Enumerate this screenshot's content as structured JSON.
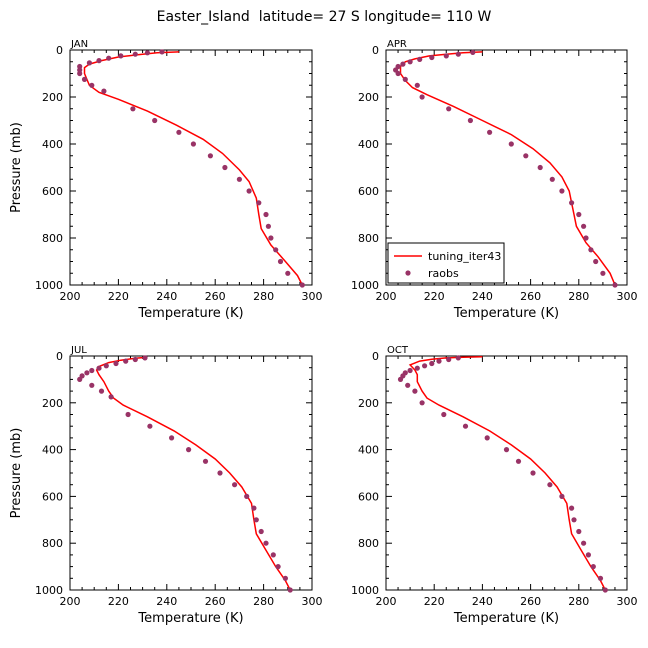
{
  "title": "Easter_Island  latitude= 27 S longitude= 110 W",
  "colors": {
    "model": "#ff0000",
    "obs": "#993366",
    "axis": "#000000"
  },
  "chart_data": [
    {
      "type": "line",
      "panel": "JAN",
      "xlabel": "Temperature (K)",
      "ylabel": "Pressure (mb)",
      "xlim": [
        200,
        300
      ],
      "ylim": [
        1000,
        0
      ],
      "x_ticks": [
        "200",
        "220",
        "240",
        "260",
        "280",
        "300"
      ],
      "y_ticks": [
        "0",
        "200",
        "400",
        "600",
        "800",
        "1000"
      ],
      "series": [
        {
          "name": "tuning_iter43",
          "style": "line",
          "points": [
            [
              245,
              8
            ],
            [
              236,
              12
            ],
            [
              228,
              20
            ],
            [
              220,
              30
            ],
            [
              213,
              45
            ],
            [
              208,
              60
            ],
            [
              206,
              75
            ],
            [
              206,
              100
            ],
            [
              207,
              125
            ],
            [
              208,
              150
            ],
            [
              212,
              180
            ],
            [
              220,
              210
            ],
            [
              232,
              260
            ],
            [
              244,
              320
            ],
            [
              255,
              380
            ],
            [
              263,
              440
            ],
            [
              270,
              510
            ],
            [
              274,
              560
            ],
            [
              277,
              630
            ],
            [
              278,
              700
            ],
            [
              279,
              760
            ],
            [
              283,
              830
            ],
            [
              289,
              900
            ],
            [
              294,
              960
            ],
            [
              296,
              1000
            ]
          ]
        },
        {
          "name": "raobs",
          "style": "markers",
          "points": [
            [
              204,
              70
            ],
            [
              204,
              85
            ],
            [
              204,
              100
            ],
            [
              206,
              125
            ],
            [
              209,
              150
            ],
            [
              214,
              175
            ],
            [
              226,
              250
            ],
            [
              235,
              300
            ],
            [
              245,
              350
            ],
            [
              251,
              400
            ],
            [
              258,
              450
            ],
            [
              264,
              500
            ],
            [
              270,
              550
            ],
            [
              274,
              600
            ],
            [
              278,
              650
            ],
            [
              281,
              700
            ],
            [
              282,
              750
            ],
            [
              283,
              800
            ],
            [
              285,
              850
            ],
            [
              287,
              900
            ],
            [
              290,
              950
            ],
            [
              296,
              1000
            ],
            [
              208,
              55
            ],
            [
              212,
              45
            ],
            [
              216,
              35
            ],
            [
              221,
              25
            ],
            [
              227,
              18
            ],
            [
              232,
              12
            ],
            [
              238,
              8
            ]
          ]
        }
      ]
    },
    {
      "type": "line",
      "panel": "APR",
      "xlabel": "Temperature (K)",
      "ylabel": "",
      "xlim": [
        200,
        300
      ],
      "ylim": [
        1000,
        0
      ],
      "x_ticks": [
        "200",
        "220",
        "240",
        "260",
        "280",
        "300"
      ],
      "y_ticks": [
        "0",
        "200",
        "400",
        "600",
        "800",
        "1000"
      ],
      "legend_position": "bottom-left",
      "series": [
        {
          "name": "tuning_iter43",
          "style": "line",
          "points": [
            [
              240,
              8
            ],
            [
              232,
              12
            ],
            [
              225,
              18
            ],
            [
              218,
              25
            ],
            [
              212,
              38
            ],
            [
              208,
              50
            ],
            [
              206,
              70
            ],
            [
              206,
              100
            ],
            [
              208,
              130
            ],
            [
              211,
              160
            ],
            [
              217,
              190
            ],
            [
              228,
              240
            ],
            [
              240,
              300
            ],
            [
              252,
              360
            ],
            [
              261,
              420
            ],
            [
              268,
              480
            ],
            [
              273,
              540
            ],
            [
              276,
              600
            ],
            [
              277,
              650
            ],
            [
              278,
              700
            ],
            [
              279,
              750
            ],
            [
              283,
              820
            ],
            [
              288,
              880
            ],
            [
              293,
              950
            ],
            [
              295,
              1000
            ]
          ]
        },
        {
          "name": "raobs",
          "style": "markers",
          "points": [
            [
              205,
              100
            ],
            [
              204,
              85
            ],
            [
              205,
              70
            ],
            [
              207,
              60
            ],
            [
              210,
              50
            ],
            [
              214,
              40
            ],
            [
              219,
              32
            ],
            [
              225,
              25
            ],
            [
              230,
              18
            ],
            [
              236,
              10
            ],
            [
              208,
              125
            ],
            [
              213,
              150
            ],
            [
              215,
              200
            ],
            [
              226,
              250
            ],
            [
              235,
              300
            ],
            [
              243,
              350
            ],
            [
              252,
              400
            ],
            [
              258,
              450
            ],
            [
              264,
              500
            ],
            [
              269,
              550
            ],
            [
              273,
              600
            ],
            [
              277,
              650
            ],
            [
              280,
              700
            ],
            [
              282,
              750
            ],
            [
              283,
              800
            ],
            [
              285,
              850
            ],
            [
              287,
              900
            ],
            [
              290,
              950
            ],
            [
              295,
              1000
            ]
          ]
        }
      ]
    },
    {
      "type": "line",
      "panel": "JUL",
      "xlabel": "Temperature (K)",
      "ylabel": "Pressure (mb)",
      "xlim": [
        200,
        300
      ],
      "ylim": [
        1000,
        0
      ],
      "x_ticks": [
        "200",
        "220",
        "240",
        "260",
        "280",
        "300"
      ],
      "y_ticks": [
        "0",
        "200",
        "400",
        "600",
        "800",
        "1000"
      ],
      "series": [
        {
          "name": "tuning_iter43",
          "style": "line",
          "points": [
            [
              232,
              5
            ],
            [
              227,
              10
            ],
            [
              221,
              18
            ],
            [
              216,
              28
            ],
            [
              212,
              45
            ],
            [
              211,
              60
            ],
            [
              212,
              80
            ],
            [
              214,
              110
            ],
            [
              216,
              150
            ],
            [
              218,
              180
            ],
            [
              222,
              210
            ],
            [
              232,
              260
            ],
            [
              243,
              320
            ],
            [
              252,
              380
            ],
            [
              260,
              440
            ],
            [
              266,
              500
            ],
            [
              271,
              560
            ],
            [
              275,
              630
            ],
            [
              276,
              700
            ],
            [
              277,
              760
            ],
            [
              281,
              830
            ],
            [
              285,
              900
            ],
            [
              289,
              960
            ],
            [
              291,
              1000
            ]
          ]
        },
        {
          "name": "raobs",
          "style": "markers",
          "points": [
            [
              204,
              100
            ],
            [
              205,
              85
            ],
            [
              207,
              72
            ],
            [
              209,
              62
            ],
            [
              212,
              52
            ],
            [
              215,
              42
            ],
            [
              219,
              32
            ],
            [
              223,
              22
            ],
            [
              227,
              15
            ],
            [
              231,
              8
            ],
            [
              209,
              125
            ],
            [
              213,
              150
            ],
            [
              217,
              175
            ],
            [
              224,
              250
            ],
            [
              233,
              300
            ],
            [
              242,
              350
            ],
            [
              249,
              400
            ],
            [
              256,
              450
            ],
            [
              262,
              500
            ],
            [
              268,
              550
            ],
            [
              273,
              600
            ],
            [
              276,
              650
            ],
            [
              277,
              700
            ],
            [
              279,
              750
            ],
            [
              281,
              800
            ],
            [
              284,
              850
            ],
            [
              286,
              900
            ],
            [
              289,
              950
            ],
            [
              291,
              1000
            ]
          ]
        }
      ]
    },
    {
      "type": "line",
      "panel": "OCT",
      "xlabel": "Temperature (K)",
      "ylabel": "",
      "xlim": [
        200,
        300
      ],
      "ylim": [
        1000,
        0
      ],
      "x_ticks": [
        "200",
        "220",
        "240",
        "260",
        "280",
        "300"
      ],
      "y_ticks": [
        "0",
        "200",
        "400",
        "600",
        "800",
        "1000"
      ],
      "series": [
        {
          "name": "tuning_iter43",
          "style": "line",
          "points": [
            [
              240,
              3
            ],
            [
              232,
              5
            ],
            [
              225,
              8
            ],
            [
              219,
              14
            ],
            [
              214,
              22
            ],
            [
              210,
              38
            ],
            [
              212,
              60
            ],
            [
              213,
              80
            ],
            [
              213,
              110
            ],
            [
              215,
              150
            ],
            [
              217,
              180
            ],
            [
              222,
              210
            ],
            [
              232,
              260
            ],
            [
              243,
              320
            ],
            [
              252,
              380
            ],
            [
              260,
              440
            ],
            [
              266,
              500
            ],
            [
              271,
              560
            ],
            [
              275,
              630
            ],
            [
              276,
              700
            ],
            [
              277,
              760
            ],
            [
              281,
              830
            ],
            [
              285,
              900
            ],
            [
              289,
              960
            ],
            [
              291,
              1000
            ]
          ]
        },
        {
          "name": "raobs",
          "style": "markers",
          "points": [
            [
              206,
              100
            ],
            [
              207,
              85
            ],
            [
              208,
              72
            ],
            [
              210,
              62
            ],
            [
              213,
              52
            ],
            [
              216,
              42
            ],
            [
              219,
              32
            ],
            [
              222,
              22
            ],
            [
              226,
              15
            ],
            [
              230,
              8
            ],
            [
              209,
              125
            ],
            [
              212,
              150
            ],
            [
              215,
              200
            ],
            [
              224,
              250
            ],
            [
              233,
              300
            ],
            [
              242,
              350
            ],
            [
              250,
              400
            ],
            [
              255,
              450
            ],
            [
              261,
              500
            ],
            [
              268,
              550
            ],
            [
              273,
              600
            ],
            [
              277,
              650
            ],
            [
              278,
              700
            ],
            [
              280,
              750
            ],
            [
              282,
              800
            ],
            [
              284,
              850
            ],
            [
              286,
              900
            ],
            [
              289,
              950
            ],
            [
              291,
              1000
            ]
          ]
        }
      ]
    }
  ]
}
